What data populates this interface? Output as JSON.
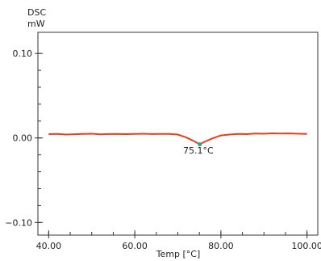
{
  "chart_data": {
    "type": "line",
    "ylabel_line1": "DSC",
    "ylabel_line2": "mW",
    "xlabel": "Temp [°C]",
    "xlim": [
      37.5,
      102.5
    ],
    "ylim": [
      -0.115,
      0.125
    ],
    "x_ticks": [
      {
        "value": 40,
        "label": "40.00"
      },
      {
        "value": 60,
        "label": "60.00"
      },
      {
        "value": 80,
        "label": "80.00"
      },
      {
        "value": 100,
        "label": "100.00"
      }
    ],
    "y_ticks": [
      {
        "value": 0.1,
        "label": "0.10"
      },
      {
        "value": 0.0,
        "label": "0.00"
      },
      {
        "value": -0.1,
        "label": "−0.10"
      }
    ],
    "series": [
      {
        "color": "#e8401c",
        "x": [
          40,
          42,
          44,
          46,
          48,
          50,
          52,
          54,
          56,
          58,
          60,
          62,
          64,
          66,
          68,
          70,
          72,
          74,
          75.1,
          76,
          78,
          80,
          82,
          84,
          86,
          88,
          90,
          92,
          94,
          96,
          98,
          100
        ],
        "y": [
          0.0045,
          0.0048,
          0.004,
          0.0044,
          0.0047,
          0.005,
          0.0043,
          0.0046,
          0.0048,
          0.0045,
          0.0047,
          0.005,
          0.0046,
          0.0048,
          0.0047,
          0.004,
          0.0005,
          -0.0045,
          -0.0075,
          -0.005,
          -0.0005,
          0.003,
          0.004,
          0.0048,
          0.0045,
          0.0052,
          0.005,
          0.0055,
          0.0052,
          0.0054,
          0.005,
          0.0048
        ]
      }
    ],
    "peak": {
      "x": 75.1,
      "y": -0.0075,
      "label": "75.1°C",
      "marker_color": "#2fa39a"
    }
  }
}
